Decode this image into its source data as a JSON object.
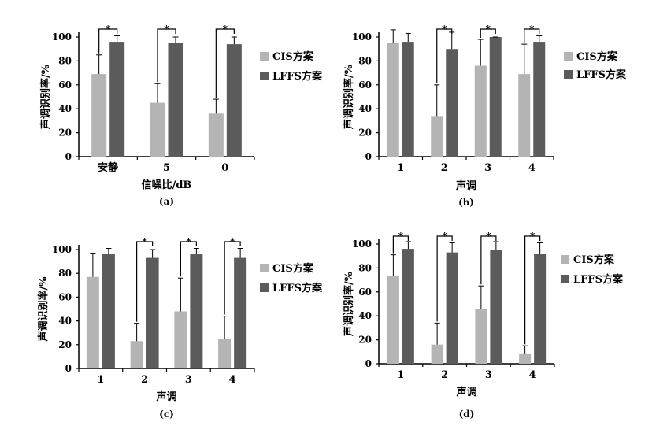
{
  "colors": {
    "cis": "#b4b4b4",
    "lffs": "#5b5b5b",
    "axis": "#000000"
  },
  "chart_data": [
    {
      "type": "bar",
      "panel_label": "(a)",
      "xlabel": "信噪比/dB",
      "ylabel": "声调识别率/%",
      "categories": [
        "安静",
        "5",
        "0"
      ],
      "ylim": [
        0,
        100
      ],
      "yticks": [
        "0",
        "20",
        "40",
        "60",
        "80",
        "100"
      ],
      "series": [
        {
          "name": "CIS方案",
          "values": [
            69,
            45,
            36
          ],
          "errors": [
            16,
            16,
            12
          ]
        },
        {
          "name": "LFFS方案",
          "values": [
            96,
            95,
            94
          ],
          "errors": [
            5,
            5,
            6
          ]
        }
      ],
      "significance": [
        "*",
        "*",
        "*"
      ],
      "legend": "right",
      "grid": false
    },
    {
      "type": "bar",
      "panel_label": "(b)",
      "xlabel": "声调",
      "ylabel": "声调识别率/%",
      "categories": [
        "1",
        "2",
        "3",
        "4"
      ],
      "ylim": [
        0,
        100
      ],
      "yticks": [
        "0",
        "20",
        "40",
        "60",
        "80",
        "100"
      ],
      "series": [
        {
          "name": "CIS方案",
          "values": [
            95,
            34,
            76,
            69
          ],
          "errors": [
            11,
            26,
            22,
            25
          ]
        },
        {
          "name": "LFFS方案",
          "values": [
            96,
            90,
            100,
            96
          ],
          "errors": [
            7,
            14,
            0,
            5
          ]
        }
      ],
      "significance": [
        "",
        "*",
        "*",
        "*"
      ],
      "legend": "right",
      "grid": false
    },
    {
      "type": "bar",
      "panel_label": "(c)",
      "xlabel": "声调",
      "ylabel": "声调识别率/%",
      "categories": [
        "1",
        "2",
        "3",
        "4"
      ],
      "ylim": [
        0,
        100
      ],
      "yticks": [
        "0",
        "20",
        "40",
        "60",
        "80",
        "100"
      ],
      "series": [
        {
          "name": "CIS方案",
          "values": [
            77,
            23,
            48,
            25
          ],
          "errors": [
            20,
            15,
            28,
            19
          ]
        },
        {
          "name": "LFFS方案",
          "values": [
            96,
            93,
            96,
            93
          ],
          "errors": [
            5,
            7,
            5,
            8
          ]
        }
      ],
      "significance": [
        "",
        "*",
        "*",
        "*"
      ],
      "legend": "right",
      "grid": false
    },
    {
      "type": "bar",
      "panel_label": "(d)",
      "xlabel": "声调",
      "ylabel": "声调识别率/%",
      "categories": [
        "1",
        "2",
        "3",
        "4"
      ],
      "ylim": [
        0,
        100
      ],
      "yticks": [
        "0",
        "20",
        "40",
        "60",
        "80",
        "100"
      ],
      "series": [
        {
          "name": "CIS方案",
          "values": [
            73,
            16,
            46,
            8
          ],
          "errors": [
            18,
            18,
            19,
            7
          ]
        },
        {
          "name": "LFFS方案",
          "values": [
            96,
            93,
            95,
            92
          ],
          "errors": [
            6,
            8,
            7,
            9
          ]
        }
      ],
      "significance": [
        "*",
        "*",
        "*",
        "*"
      ],
      "legend": "right",
      "grid": false
    }
  ]
}
